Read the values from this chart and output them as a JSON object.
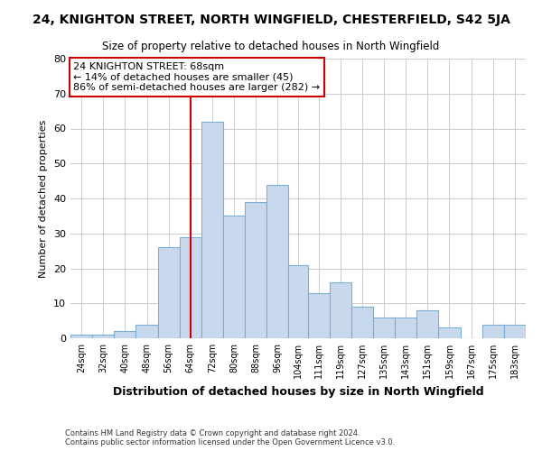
{
  "title": "24, KNIGHTON STREET, NORTH WINGFIELD, CHESTERFIELD, S42 5JA",
  "subtitle": "Size of property relative to detached houses in North Wingfield",
  "xlabel": "Distribution of detached houses by size in North Wingfield",
  "ylabel": "Number of detached properties",
  "footer_line1": "Contains HM Land Registry data © Crown copyright and database right 2024.",
  "footer_line2": "Contains public sector information licensed under the Open Government Licence v3.0.",
  "bar_labels": [
    "24sqm",
    "32sqm",
    "40sqm",
    "48sqm",
    "56sqm",
    "64sqm",
    "72sqm",
    "80sqm",
    "88sqm",
    "96sqm",
    "104sqm",
    "111sqm",
    "119sqm",
    "127sqm",
    "135sqm",
    "143sqm",
    "151sqm",
    "159sqm",
    "167sqm",
    "175sqm",
    "183sqm"
  ],
  "bar_values": [
    1,
    1,
    2,
    4,
    26,
    29,
    62,
    35,
    39,
    44,
    21,
    13,
    16,
    9,
    6,
    6,
    8,
    3,
    0,
    4,
    4
  ],
  "bar_color": "#c8d9ee",
  "bar_edgecolor": "#7aafd4",
  "vline_x": 68,
  "vline_color": "#cc0000",
  "annotation_text": "24 KNIGHTON STREET: 68sqm\n← 14% of detached houses are smaller (45)\n86% of semi-detached houses are larger (282) →",
  "annotation_box_edgecolor": "#cc0000",
  "annotation_box_facecolor": "#ffffff",
  "bin_edges": [
    24,
    32,
    40,
    48,
    56,
    64,
    72,
    80,
    88,
    96,
    104,
    111,
    119,
    127,
    135,
    143,
    151,
    159,
    167,
    175,
    183,
    191
  ],
  "ylim": [
    0,
    80
  ],
  "yticks": [
    0,
    10,
    20,
    30,
    40,
    50,
    60,
    70,
    80
  ],
  "background_color": "#ffffff",
  "grid_color": "#cccccc"
}
